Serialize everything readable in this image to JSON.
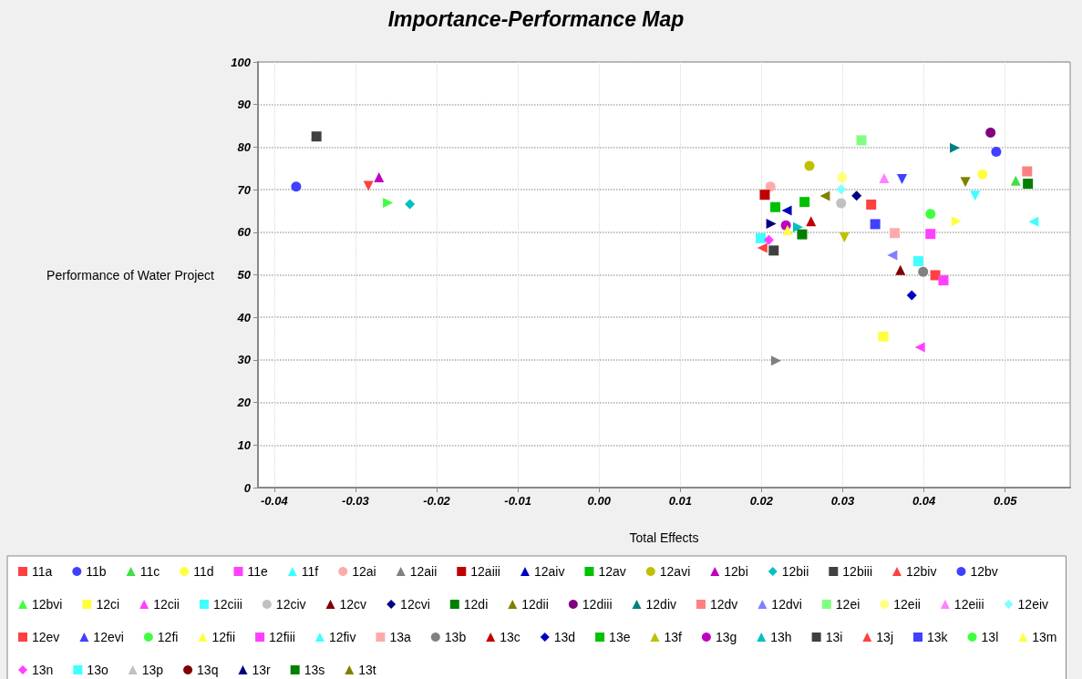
{
  "chart_data": {
    "type": "scatter",
    "title": "Importance-Performance Map",
    "xlabel": "Total Effects",
    "ylabel": "Performance of Water Project",
    "xlim": [
      -0.042,
      0.058
    ],
    "xticks": [
      -0.04,
      -0.03,
      -0.02,
      -0.01,
      {
        "value": 0,
        "label": "0.00"
      },
      0.01,
      0.02,
      0.03,
      0.04,
      0.05
    ],
    "ylim": [
      0,
      100
    ],
    "yticks": [
      0,
      10,
      20,
      30,
      40,
      50,
      60,
      70,
      80,
      90,
      100
    ],
    "grid": true,
    "legend": "bottom",
    "series": [
      {
        "name": "11a",
        "color": "#ff4040",
        "marker": "square",
        "x": [
          0.0414
        ],
        "values": [
          49.9
        ]
      },
      {
        "name": "11b",
        "color": "#4040ff",
        "marker": "circle",
        "x": [
          0.0489
        ],
        "values": [
          78.9
        ]
      },
      {
        "name": "11c",
        "color": "#40e040",
        "marker": "triangle",
        "x": [
          0.0513
        ],
        "values": [
          72.1
        ]
      },
      {
        "name": "11d",
        "color": "#ffff40",
        "marker": "circle",
        "x": [
          0.0472
        ],
        "values": [
          73.6
        ]
      },
      {
        "name": "11e",
        "color": "#ff40ff",
        "marker": "square",
        "x": [
          0.0424
        ],
        "values": [
          48.7
        ]
      },
      {
        "name": "11f",
        "color": "#40ffff",
        "marker": "triangle-down",
        "x": [
          0.0463
        ],
        "values": [
          68.6
        ]
      },
      {
        "name": "12ai",
        "color": "#ffaaaa",
        "marker": "circle",
        "x": [
          0.0211
        ],
        "values": [
          70.7
        ]
      },
      {
        "name": "12aii",
        "color": "#808080",
        "marker": "triangle-right",
        "x": [
          0.0218
        ],
        "values": [
          29.8
        ]
      },
      {
        "name": "12aiii",
        "color": "#c00000",
        "marker": "square",
        "x": [
          0.0204
        ],
        "values": [
          68.8
        ]
      },
      {
        "name": "12aiv",
        "color": "#0000c0",
        "marker": "triangle-left",
        "x": [
          0.0231
        ],
        "values": [
          65.1
        ]
      },
      {
        "name": "12av",
        "color": "#00c000",
        "marker": "square",
        "x": [
          0.0217
        ],
        "values": [
          65.9
        ]
      },
      {
        "name": "12avi",
        "color": "#c0c000",
        "marker": "circle",
        "x": [
          0.0259
        ],
        "values": [
          75.6
        ]
      },
      {
        "name": "12bi",
        "color": "#c000c0",
        "marker": "triangle",
        "x": [
          -0.0271
        ],
        "values": [
          72.9
        ]
      },
      {
        "name": "12bii",
        "color": "#00c0c0",
        "marker": "diamond",
        "x": [
          -0.0233
        ],
        "values": [
          66.6
        ]
      },
      {
        "name": "12biii",
        "color": "#404040",
        "marker": "square",
        "x": [
          -0.0348
        ],
        "values": [
          82.5
        ]
      },
      {
        "name": "12biv",
        "color": "#ff4040",
        "marker": "triangle-down",
        "x": [
          -0.0284
        ],
        "values": [
          70.9
        ]
      },
      {
        "name": "12bv",
        "color": "#4040ff",
        "marker": "circle",
        "x": [
          -0.0373
        ],
        "values": [
          70.7
        ]
      },
      {
        "name": "12bvi",
        "color": "#40ff40",
        "marker": "triangle-right",
        "x": [
          -0.026
        ],
        "values": [
          66.9
        ]
      },
      {
        "name": "12ci",
        "color": "#ffff40",
        "marker": "square",
        "x": [
          0.035
        ],
        "values": [
          35.5
        ]
      },
      {
        "name": "12cii",
        "color": "#ff40ff",
        "marker": "triangle-left",
        "x": [
          0.0395
        ],
        "values": [
          33.0
        ]
      },
      {
        "name": "12ciii",
        "color": "#40ffff",
        "marker": "square",
        "x": [
          0.0199
        ],
        "values": [
          58.6
        ]
      },
      {
        "name": "12civ",
        "color": "#c0c0c0",
        "marker": "circle",
        "x": [
          0.0298
        ],
        "values": [
          66.8
        ]
      },
      {
        "name": "12cv",
        "color": "#800000",
        "marker": "triangle",
        "x": [
          0.0371
        ],
        "values": [
          51.1
        ]
      },
      {
        "name": "12cvi",
        "color": "#000080",
        "marker": "diamond",
        "x": [
          0.0317
        ],
        "values": [
          68.6
        ]
      },
      {
        "name": "12di",
        "color": "#008000",
        "marker": "square",
        "x": [
          0.0528
        ],
        "values": [
          71.4
        ]
      },
      {
        "name": "12dii",
        "color": "#808000",
        "marker": "triangle-down",
        "x": [
          0.0451
        ],
        "values": [
          71.8
        ]
      },
      {
        "name": "12diii",
        "color": "#800080",
        "marker": "circle",
        "x": [
          0.0482
        ],
        "values": [
          83.4
        ]
      },
      {
        "name": "12div",
        "color": "#008080",
        "marker": "triangle-right",
        "x": [
          0.0438
        ],
        "values": [
          79.8
        ]
      },
      {
        "name": "12dv",
        "color": "#ff8080",
        "marker": "square",
        "x": [
          0.0527
        ],
        "values": [
          74.3
        ]
      },
      {
        "name": "12dvi",
        "color": "#8080ff",
        "marker": "triangle-left",
        "x": [
          0.0361
        ],
        "values": [
          54.6
        ]
      },
      {
        "name": "12ei",
        "color": "#80ff80",
        "marker": "square",
        "x": [
          0.0323
        ],
        "values": [
          81.6
        ]
      },
      {
        "name": "12eii",
        "color": "#ffff80",
        "marker": "circle",
        "x": [
          0.0299
        ],
        "values": [
          72.9
        ]
      },
      {
        "name": "12eiii",
        "color": "#ff80ff",
        "marker": "triangle",
        "x": [
          0.0351
        ],
        "values": [
          72.7
        ]
      },
      {
        "name": "12eiv",
        "color": "#80ffff",
        "marker": "diamond",
        "x": [
          0.0298
        ],
        "values": [
          70.1
        ]
      },
      {
        "name": "12ev",
        "color": "#ff4040",
        "marker": "square",
        "x": [
          0.0335
        ],
        "values": [
          66.5
        ]
      },
      {
        "name": "12evi",
        "color": "#4040ff",
        "marker": "triangle-down",
        "x": [
          0.0373
        ],
        "values": [
          72.5
        ]
      },
      {
        "name": "12fi",
        "color": "#40ff40",
        "marker": "circle",
        "x": [
          0.0408
        ],
        "values": [
          64.3
        ]
      },
      {
        "name": "12fii",
        "color": "#ffff40",
        "marker": "triangle-right",
        "x": [
          0.044
        ],
        "values": [
          62.6
        ]
      },
      {
        "name": "12fiii",
        "color": "#ff40ff",
        "marker": "square",
        "x": [
          0.0408
        ],
        "values": [
          59.6
        ]
      },
      {
        "name": "12fiv",
        "color": "#40ffff",
        "marker": "triangle-left",
        "x": [
          0.0535
        ],
        "values": [
          62.5
        ]
      },
      {
        "name": "13a",
        "color": "#ffaaaa",
        "marker": "square",
        "x": [
          0.0364
        ],
        "values": [
          59.8
        ]
      },
      {
        "name": "13b",
        "color": "#808080",
        "marker": "circle",
        "x": [
          0.0399
        ],
        "values": [
          50.7
        ]
      },
      {
        "name": "13c",
        "color": "#c00000",
        "marker": "triangle",
        "x": [
          0.0261
        ],
        "values": [
          62.6
        ]
      },
      {
        "name": "13d",
        "color": "#0000c0",
        "marker": "diamond",
        "x": [
          0.0385
        ],
        "values": [
          45.2
        ]
      },
      {
        "name": "13e",
        "color": "#00c000",
        "marker": "square",
        "x": [
          0.0253
        ],
        "values": [
          67.1
        ]
      },
      {
        "name": "13f",
        "color": "#c0c000",
        "marker": "triangle-down",
        "x": [
          0.0302
        ],
        "values": [
          58.8
        ]
      },
      {
        "name": "13g",
        "color": "#c000c0",
        "marker": "circle",
        "x": [
          0.023
        ],
        "values": [
          61.6
        ]
      },
      {
        "name": "13h",
        "color": "#00c0c0",
        "marker": "triangle-right",
        "x": [
          0.0245
        ],
        "values": [
          61.2
        ]
      },
      {
        "name": "13i",
        "color": "#404040",
        "marker": "square",
        "x": [
          0.0215
        ],
        "values": [
          55.7
        ]
      },
      {
        "name": "13j",
        "color": "#ff4040",
        "marker": "triangle-left",
        "x": [
          0.0201
        ],
        "values": [
          56.3
        ]
      },
      {
        "name": "13k",
        "color": "#4040ff",
        "marker": "square",
        "x": [
          0.034
        ],
        "values": [
          61.9
        ]
      },
      {
        "name": "13l",
        "color": "#40ff40",
        "marker": "circle",
        "x": [
          null
        ],
        "values": [
          null
        ]
      },
      {
        "name": "13m",
        "color": "#ffff40",
        "marker": "triangle",
        "x": [
          0.0232
        ],
        "values": [
          60.5
        ]
      },
      {
        "name": "13n",
        "color": "#ff40ff",
        "marker": "diamond",
        "x": [
          0.0209
        ],
        "values": [
          58.2
        ]
      },
      {
        "name": "13o",
        "color": "#40ffff",
        "marker": "square",
        "x": [
          0.0393
        ],
        "values": [
          53.2
        ]
      },
      {
        "name": "13p",
        "color": "#c0c0c0",
        "marker": "triangle-down",
        "x": [
          null
        ],
        "values": [
          null
        ]
      },
      {
        "name": "13q",
        "color": "#800000",
        "marker": "circle",
        "x": [
          null
        ],
        "values": [
          null
        ]
      },
      {
        "name": "13r",
        "color": "#000080",
        "marker": "triangle-right",
        "x": [
          0.0212
        ],
        "values": [
          62.0
        ]
      },
      {
        "name": "13s",
        "color": "#008000",
        "marker": "square",
        "x": [
          0.025
        ],
        "values": [
          59.5
        ]
      },
      {
        "name": "13t",
        "color": "#808000",
        "marker": "triangle-left",
        "x": [
          0.0278
        ],
        "values": [
          68.5
        ]
      }
    ]
  }
}
